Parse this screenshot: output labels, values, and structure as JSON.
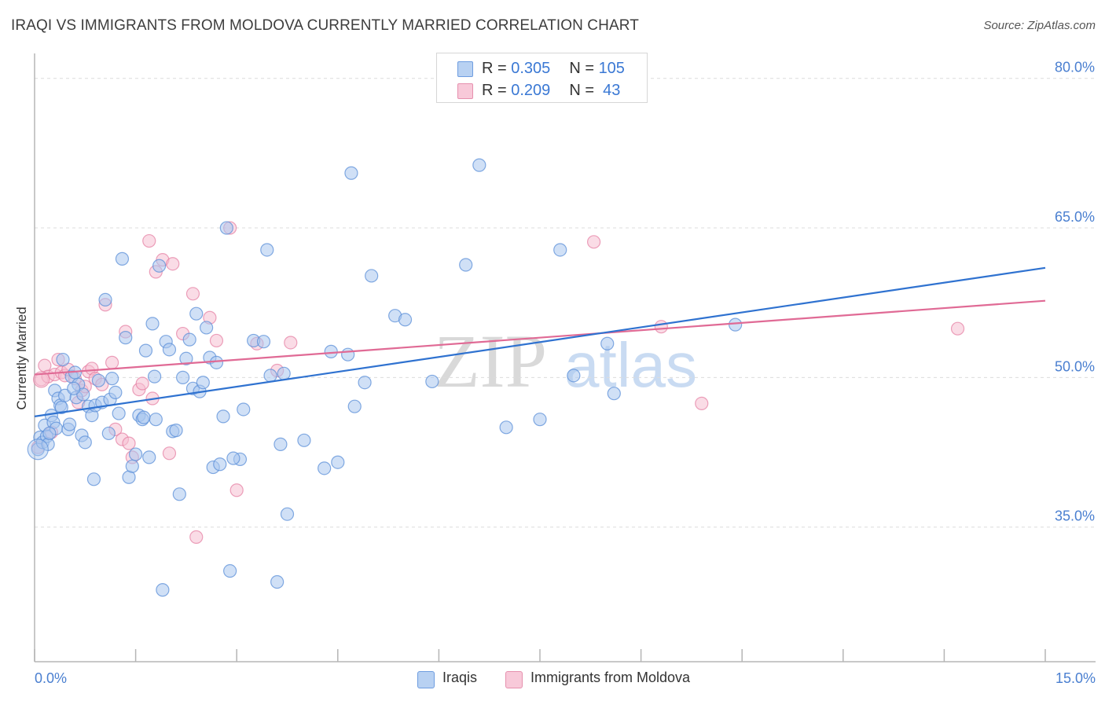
{
  "header": {
    "title": "IRAQI VS IMMIGRANTS FROM MOLDOVA CURRENTLY MARRIED CORRELATION CHART",
    "source": "Source: ZipAtlas.com"
  },
  "colors": {
    "blue": "#5b8fd8",
    "blue_fill": "#a9c7ef",
    "pink": "#e47ba0",
    "pink_fill": "#f6bfd1",
    "blue_line": "#2f72d0",
    "pink_line": "#e06a95",
    "tick_text": "#4a7fd0"
  },
  "legend": {
    "rows": [
      {
        "r_label": "R = ",
        "r_value": "0.305",
        "n_label": "N = ",
        "n_value": "105"
      },
      {
        "r_label": "R = ",
        "r_value": "0.209",
        "n_label": "N = ",
        "n_value": " 43"
      }
    ]
  },
  "bottom_legend": {
    "series1": "Iraqis",
    "series2": "Immigrants from Moldova"
  },
  "watermark": {
    "zip": "ZIP",
    "atlas": "atlas"
  },
  "chart_data": {
    "type": "scatter",
    "title": "IRAQI VS IMMIGRANTS FROM MOLDOVA CURRENTLY MARRIED CORRELATION CHART",
    "xlabel": "",
    "ylabel": "Currently Married",
    "xlim": [
      0,
      15
    ],
    "ylim": [
      21.5,
      82.5
    ],
    "x_tick_labels": [
      "0.0%",
      "15.0%"
    ],
    "y_ticks": [
      35,
      50,
      65,
      80
    ],
    "y_tick_labels": [
      "35.0%",
      "50.0%",
      "65.0%",
      "80.0%"
    ],
    "grid": true,
    "series": [
      {
        "name": "Iraqis",
        "r": 0.305,
        "n": 105,
        "trend": {
          "x": [
            0,
            15
          ],
          "y": [
            46.1,
            61.0
          ]
        },
        "points": [
          [
            0.05,
            42.8
          ],
          [
            0.08,
            44.0
          ],
          [
            0.12,
            43.5
          ],
          [
            0.15,
            45.2
          ],
          [
            0.18,
            44.1
          ],
          [
            0.2,
            43.3
          ],
          [
            0.25,
            46.2
          ],
          [
            0.28,
            45.5
          ],
          [
            0.3,
            48.7
          ],
          [
            0.32,
            44.9
          ],
          [
            0.35,
            47.9
          ],
          [
            0.38,
            47.2
          ],
          [
            0.42,
            51.8
          ],
          [
            0.45,
            48.2
          ],
          [
            0.5,
            44.8
          ],
          [
            0.52,
            45.3
          ],
          [
            0.55,
            50.1
          ],
          [
            0.6,
            50.5
          ],
          [
            0.62,
            48.0
          ],
          [
            0.65,
            49.3
          ],
          [
            0.7,
            44.2
          ],
          [
            0.72,
            48.3
          ],
          [
            0.75,
            43.5
          ],
          [
            0.8,
            47.1
          ],
          [
            0.85,
            46.2
          ],
          [
            0.88,
            39.8
          ],
          [
            0.9,
            47.2
          ],
          [
            1.0,
            47.5
          ],
          [
            1.05,
            57.8
          ],
          [
            1.1,
            44.4
          ],
          [
            1.12,
            47.8
          ],
          [
            1.15,
            49.9
          ],
          [
            1.2,
            48.5
          ],
          [
            1.25,
            46.4
          ],
          [
            1.3,
            61.9
          ],
          [
            1.35,
            54.0
          ],
          [
            1.4,
            40.0
          ],
          [
            1.45,
            41.1
          ],
          [
            1.5,
            42.3
          ],
          [
            1.55,
            46.2
          ],
          [
            1.6,
            45.8
          ],
          [
            1.65,
            52.7
          ],
          [
            1.7,
            42.0
          ],
          [
            1.75,
            55.4
          ],
          [
            1.78,
            50.1
          ],
          [
            1.8,
            45.8
          ],
          [
            1.85,
            61.2
          ],
          [
            1.9,
            28.7
          ],
          [
            1.95,
            53.6
          ],
          [
            2.0,
            52.8
          ],
          [
            2.05,
            44.6
          ],
          [
            2.1,
            44.7
          ],
          [
            2.15,
            38.3
          ],
          [
            2.2,
            50.0
          ],
          [
            2.25,
            51.9
          ],
          [
            2.3,
            53.8
          ],
          [
            2.35,
            48.9
          ],
          [
            2.4,
            56.4
          ],
          [
            2.45,
            48.6
          ],
          [
            2.5,
            49.5
          ],
          [
            2.55,
            55.0
          ],
          [
            2.6,
            52.0
          ],
          [
            2.65,
            41.0
          ],
          [
            2.7,
            51.5
          ],
          [
            2.75,
            41.3
          ],
          [
            2.8,
            46.1
          ],
          [
            2.85,
            65.0
          ],
          [
            2.9,
            30.6
          ],
          [
            3.05,
            41.8
          ],
          [
            3.1,
            46.8
          ],
          [
            3.25,
            53.7
          ],
          [
            3.4,
            53.6
          ],
          [
            3.45,
            62.8
          ],
          [
            3.5,
            50.2
          ],
          [
            3.6,
            29.5
          ],
          [
            3.7,
            50.4
          ],
          [
            3.65,
            43.3
          ],
          [
            3.75,
            36.3
          ],
          [
            4.0,
            43.7
          ],
          [
            4.3,
            40.9
          ],
          [
            4.4,
            52.6
          ],
          [
            4.5,
            41.5
          ],
          [
            4.65,
            52.3
          ],
          [
            4.7,
            70.5
          ],
          [
            4.75,
            47.1
          ],
          [
            4.9,
            49.5
          ],
          [
            5.0,
            60.2
          ],
          [
            5.35,
            56.2
          ],
          [
            5.5,
            55.8
          ],
          [
            5.9,
            49.6
          ],
          [
            6.4,
            61.3
          ],
          [
            6.6,
            71.3
          ],
          [
            7.0,
            45.0
          ],
          [
            7.5,
            45.8
          ],
          [
            7.8,
            62.8
          ],
          [
            8.0,
            50.2
          ],
          [
            8.5,
            53.4
          ],
          [
            8.6,
            48.4
          ],
          [
            10.4,
            55.3
          ],
          [
            0.22,
            44.4
          ],
          [
            0.4,
            47.0
          ],
          [
            0.58,
            48.9
          ],
          [
            0.95,
            49.7
          ],
          [
            1.62,
            46.0
          ],
          [
            2.95,
            41.9
          ]
        ]
      },
      {
        "name": "Immigrants from Moldova",
        "r": 0.209,
        "n": 43,
        "trend": {
          "x": [
            0,
            15
          ],
          "y": [
            50.3,
            57.7
          ]
        },
        "points": [
          [
            0.05,
            43.0
          ],
          [
            0.1,
            49.8
          ],
          [
            0.15,
            51.2
          ],
          [
            0.2,
            50.1
          ],
          [
            0.25,
            44.5
          ],
          [
            0.3,
            50.3
          ],
          [
            0.35,
            51.8
          ],
          [
            0.4,
            50.5
          ],
          [
            0.45,
            50.2
          ],
          [
            0.5,
            50.8
          ],
          [
            0.6,
            49.9
          ],
          [
            0.65,
            47.5
          ],
          [
            0.7,
            48.7
          ],
          [
            0.75,
            49.1
          ],
          [
            0.8,
            50.6
          ],
          [
            0.85,
            50.9
          ],
          [
            0.9,
            49.9
          ],
          [
            1.0,
            49.3
          ],
          [
            1.05,
            57.3
          ],
          [
            1.15,
            51.5
          ],
          [
            1.2,
            44.8
          ],
          [
            1.3,
            43.8
          ],
          [
            1.35,
            54.6
          ],
          [
            1.4,
            43.4
          ],
          [
            1.45,
            42.0
          ],
          [
            1.55,
            48.8
          ],
          [
            1.6,
            49.4
          ],
          [
            1.7,
            63.7
          ],
          [
            1.75,
            47.9
          ],
          [
            1.8,
            60.6
          ],
          [
            1.9,
            61.8
          ],
          [
            2.0,
            42.4
          ],
          [
            2.05,
            61.4
          ],
          [
            2.2,
            54.4
          ],
          [
            2.35,
            58.4
          ],
          [
            2.4,
            34.0
          ],
          [
            2.6,
            56.0
          ],
          [
            2.7,
            53.7
          ],
          [
            2.9,
            65.0
          ],
          [
            3.0,
            38.7
          ],
          [
            3.3,
            53.4
          ],
          [
            3.6,
            50.7
          ],
          [
            3.8,
            53.5
          ]
        ],
        "extra_points": [
          [
            8.3,
            63.6
          ],
          [
            9.3,
            55.1
          ],
          [
            9.9,
            47.4
          ],
          [
            13.7,
            54.9
          ]
        ]
      }
    ]
  }
}
